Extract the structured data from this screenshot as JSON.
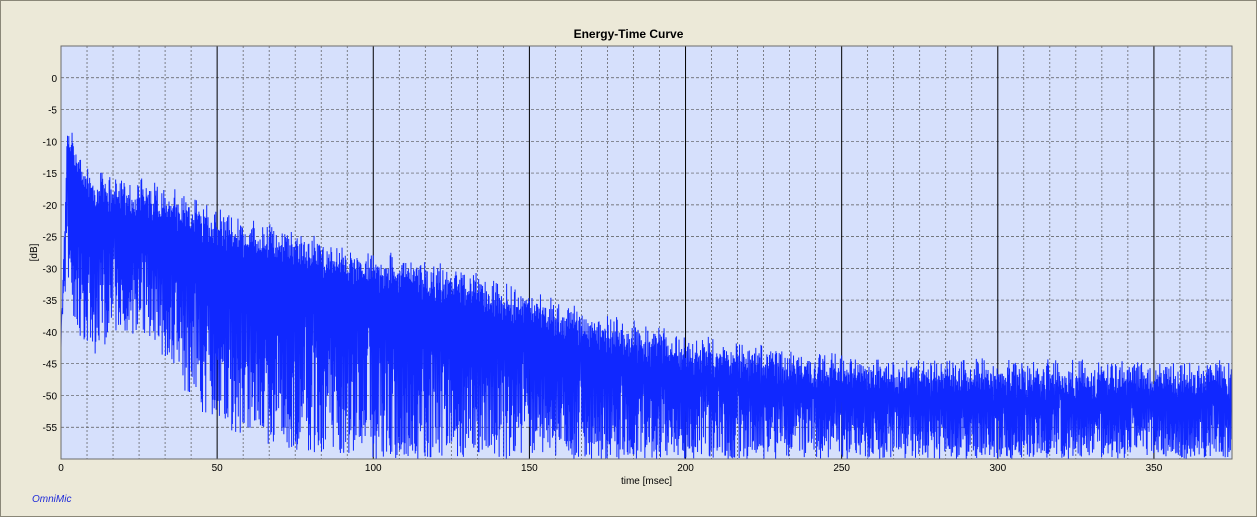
{
  "app": {
    "brand": "OmniMic"
  },
  "chart_data": {
    "type": "line",
    "title": "Energy-Time Curve",
    "xlabel": "time [msec]",
    "ylabel": "[dB]",
    "xlim": [
      0,
      375
    ],
    "ylim": [
      -60,
      5
    ],
    "x_ticks": [
      0,
      50,
      100,
      150,
      200,
      250,
      300,
      350
    ],
    "x_minor_step": 8.333,
    "y_ticks": [
      0,
      -5,
      -10,
      -15,
      -20,
      -25,
      -30,
      -35,
      -40,
      -45,
      -50,
      -55
    ],
    "grid": true,
    "legend": "none",
    "colors": {
      "plot_bg": "#d6e0fc",
      "line": "#1028ff",
      "major_grid": "#000000",
      "minor_grid": "#555555"
    },
    "series": [
      {
        "envelope": [
          {
            "x": 0,
            "peak": -38,
            "floor": -40
          },
          {
            "x": 2,
            "peak": -6,
            "floor": -32
          },
          {
            "x": 5,
            "peak": -10,
            "floor": -40
          },
          {
            "x": 10,
            "peak": -14,
            "floor": -44
          },
          {
            "x": 20,
            "peak": -15,
            "floor": -40
          },
          {
            "x": 30,
            "peak": -16,
            "floor": -42
          },
          {
            "x": 40,
            "peak": -18,
            "floor": -50
          },
          {
            "x": 50,
            "peak": -20,
            "floor": -55
          },
          {
            "x": 60,
            "peak": -22,
            "floor": -57
          },
          {
            "x": 80,
            "peak": -24,
            "floor": -59
          },
          {
            "x": 100,
            "peak": -27,
            "floor": -60
          },
          {
            "x": 125,
            "peak": -29,
            "floor": -60
          },
          {
            "x": 150,
            "peak": -33,
            "floor": -60
          },
          {
            "x": 175,
            "peak": -37,
            "floor": -60
          },
          {
            "x": 200,
            "peak": -40,
            "floor": -60
          },
          {
            "x": 250,
            "peak": -43,
            "floor": -60
          },
          {
            "x": 300,
            "peak": -44,
            "floor": -60
          },
          {
            "x": 375,
            "peak": -44,
            "floor": -60
          }
        ]
      }
    ]
  }
}
